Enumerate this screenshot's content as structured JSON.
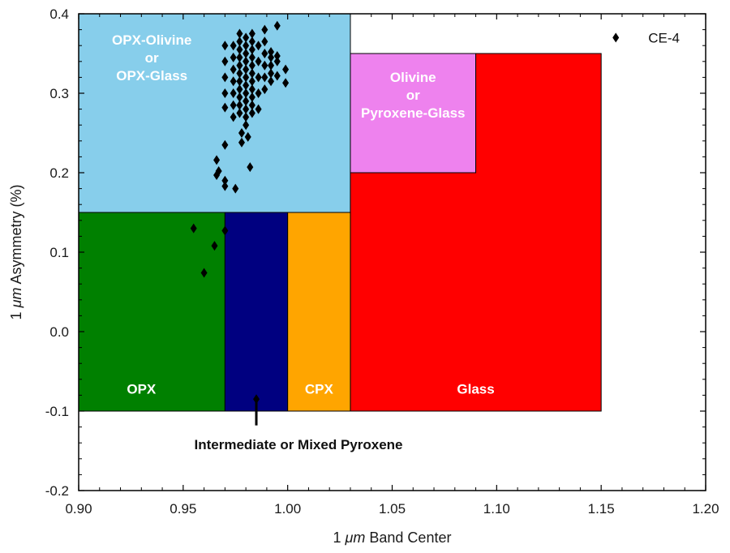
{
  "chart_data": {
    "type": "scatter",
    "xlabel": {
      "prefix": "1 ",
      "unit": "μm",
      "suffix": " Band Center"
    },
    "ylabel": {
      "prefix": "1 ",
      "unit": "μm",
      "suffix": " Asymmetry (%)"
    },
    "xlim": [
      0.9,
      1.2
    ],
    "ylim": [
      -0.2,
      0.4
    ],
    "x_ticks": [
      0.9,
      0.95,
      1.0,
      1.05,
      1.1,
      1.15,
      1.2
    ],
    "x_tick_labels": [
      "0.90",
      "0.95",
      "1.00",
      "1.05",
      "1.10",
      "1.15",
      "1.20"
    ],
    "y_ticks": [
      -0.2,
      -0.1,
      0.0,
      0.1,
      0.2,
      0.3,
      0.4
    ],
    "y_tick_labels": [
      "-0.2",
      "-0.1",
      "0.0",
      "0.1",
      "0.2",
      "0.3",
      "0.4"
    ],
    "regions": [
      {
        "id": "opx-olivine",
        "label_lines": [
          "OPX-Olivine",
          "or",
          "OPX-Glass"
        ],
        "x0": 0.9,
        "x1": 1.03,
        "y0": 0.15,
        "y1": 0.4,
        "color": "#87ceeb",
        "label_x": 0.935,
        "label_y": 0.345
      },
      {
        "id": "olivine-pyroxene-glass",
        "label_lines": [
          "Olivine",
          "or",
          "Pyroxene-Glass"
        ],
        "x0": 1.03,
        "x1": 1.09,
        "y0": 0.2,
        "y1": 0.35,
        "color": "#ee82ee",
        "label_x": 1.06,
        "label_y": 0.298
      },
      {
        "id": "glass",
        "label_lines": [
          "Glass"
        ],
        "x0": 1.03,
        "x1": 1.15,
        "y0": -0.1,
        "y1": 0.35,
        "cutout": {
          "x0": 1.03,
          "x1": 1.09,
          "y0": 0.2
        },
        "color": "#ff0000",
        "label_x": 1.09,
        "label_y": -0.072
      },
      {
        "id": "opx",
        "label_lines": [
          "OPX"
        ],
        "x0": 0.9,
        "x1": 0.97,
        "y0": -0.1,
        "y1": 0.15,
        "color": "#008000",
        "label_x": 0.93,
        "label_y": -0.072
      },
      {
        "id": "intermediate",
        "label_lines": [],
        "x0": 0.97,
        "x1": 1.0,
        "y0": -0.1,
        "y1": 0.15,
        "color": "#000080"
      },
      {
        "id": "cpx",
        "label_lines": [
          "CPX"
        ],
        "x0": 1.0,
        "x1": 1.03,
        "y0": -0.1,
        "y1": 0.15,
        "color": "#ffa500",
        "label_x": 1.015,
        "label_y": -0.072
      }
    ],
    "callout": {
      "text": "Intermediate or Mixed Pyroxene",
      "x": 0.985,
      "y_top": -0.082,
      "y_bottom": -0.118,
      "label_y": -0.142
    },
    "points": [
      {
        "x": 0.977,
        "y": 0.375
      },
      {
        "x": 0.977,
        "y": 0.365
      },
      {
        "x": 0.977,
        "y": 0.355
      },
      {
        "x": 0.977,
        "y": 0.345
      },
      {
        "x": 0.977,
        "y": 0.335
      },
      {
        "x": 0.977,
        "y": 0.325
      },
      {
        "x": 0.977,
        "y": 0.315
      },
      {
        "x": 0.977,
        "y": 0.305
      },
      {
        "x": 0.977,
        "y": 0.295
      },
      {
        "x": 0.977,
        "y": 0.285
      },
      {
        "x": 0.977,
        "y": 0.275
      },
      {
        "x": 0.98,
        "y": 0.37
      },
      {
        "x": 0.98,
        "y": 0.36
      },
      {
        "x": 0.98,
        "y": 0.35
      },
      {
        "x": 0.98,
        "y": 0.34
      },
      {
        "x": 0.98,
        "y": 0.33
      },
      {
        "x": 0.98,
        "y": 0.32
      },
      {
        "x": 0.98,
        "y": 0.31
      },
      {
        "x": 0.98,
        "y": 0.3
      },
      {
        "x": 0.98,
        "y": 0.29
      },
      {
        "x": 0.98,
        "y": 0.28
      },
      {
        "x": 0.98,
        "y": 0.27
      },
      {
        "x": 0.98,
        "y": 0.26
      },
      {
        "x": 0.983,
        "y": 0.375
      },
      {
        "x": 0.983,
        "y": 0.365
      },
      {
        "x": 0.983,
        "y": 0.355
      },
      {
        "x": 0.983,
        "y": 0.345
      },
      {
        "x": 0.983,
        "y": 0.335
      },
      {
        "x": 0.983,
        "y": 0.325
      },
      {
        "x": 0.983,
        "y": 0.315
      },
      {
        "x": 0.983,
        "y": 0.305
      },
      {
        "x": 0.983,
        "y": 0.295
      },
      {
        "x": 0.983,
        "y": 0.285
      },
      {
        "x": 0.983,
        "y": 0.275
      },
      {
        "x": 0.974,
        "y": 0.36
      },
      {
        "x": 0.974,
        "y": 0.345
      },
      {
        "x": 0.974,
        "y": 0.33
      },
      {
        "x": 0.974,
        "y": 0.315
      },
      {
        "x": 0.974,
        "y": 0.3
      },
      {
        "x": 0.974,
        "y": 0.285
      },
      {
        "x": 0.974,
        "y": 0.27
      },
      {
        "x": 0.97,
        "y": 0.36
      },
      {
        "x": 0.97,
        "y": 0.34
      },
      {
        "x": 0.97,
        "y": 0.32
      },
      {
        "x": 0.97,
        "y": 0.3
      },
      {
        "x": 0.97,
        "y": 0.282
      },
      {
        "x": 0.986,
        "y": 0.36
      },
      {
        "x": 0.986,
        "y": 0.34
      },
      {
        "x": 0.986,
        "y": 0.32
      },
      {
        "x": 0.986,
        "y": 0.3
      },
      {
        "x": 0.986,
        "y": 0.28
      },
      {
        "x": 0.989,
        "y": 0.38
      },
      {
        "x": 0.989,
        "y": 0.365
      },
      {
        "x": 0.989,
        "y": 0.35
      },
      {
        "x": 0.989,
        "y": 0.335
      },
      {
        "x": 0.989,
        "y": 0.32
      },
      {
        "x": 0.989,
        "y": 0.305
      },
      {
        "x": 0.992,
        "y": 0.352
      },
      {
        "x": 0.992,
        "y": 0.345
      },
      {
        "x": 0.992,
        "y": 0.335
      },
      {
        "x": 0.992,
        "y": 0.325
      },
      {
        "x": 0.992,
        "y": 0.315
      },
      {
        "x": 0.995,
        "y": 0.385
      },
      {
        "x": 0.995,
        "y": 0.347
      },
      {
        "x": 0.995,
        "y": 0.34
      },
      {
        "x": 0.995,
        "y": 0.322
      },
      {
        "x": 0.999,
        "y": 0.33
      },
      {
        "x": 0.999,
        "y": 0.313
      },
      {
        "x": 0.978,
        "y": 0.25
      },
      {
        "x": 0.978,
        "y": 0.238
      },
      {
        "x": 0.981,
        "y": 0.245
      },
      {
        "x": 0.982,
        "y": 0.207
      },
      {
        "x": 0.97,
        "y": 0.235
      },
      {
        "x": 0.967,
        "y": 0.202
      },
      {
        "x": 0.966,
        "y": 0.197
      },
      {
        "x": 0.966,
        "y": 0.216
      },
      {
        "x": 0.97,
        "y": 0.19
      },
      {
        "x": 0.97,
        "y": 0.183
      },
      {
        "x": 0.975,
        "y": 0.18
      },
      {
        "x": 0.955,
        "y": 0.13
      },
      {
        "x": 0.965,
        "y": 0.108
      },
      {
        "x": 0.97,
        "y": 0.127
      },
      {
        "x": 0.96,
        "y": 0.074
      },
      {
        "x": 0.985,
        "y": -0.085
      }
    ],
    "highlight": {
      "label": "CE-4",
      "x": 1.157,
      "y": 0.37
    }
  }
}
